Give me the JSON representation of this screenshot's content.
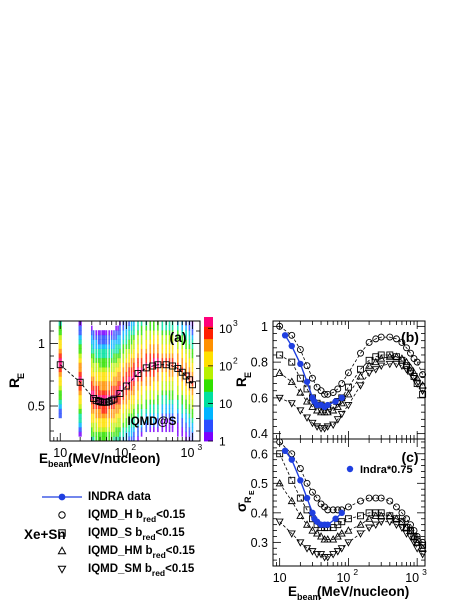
{
  "chart_data": [
    {
      "id": "a",
      "type": "heatmap",
      "panel_label": "(a)",
      "annotation": "IQMD@S",
      "ylabel": "R",
      "ylabel_sub": "E",
      "xlabel": "E",
      "xlabel_sub": "beam",
      "xlabel_rest": "(MeV/nucleon)",
      "x_scale": "log",
      "xlim": [
        7,
        1300
      ],
      "ylim": [
        0.22,
        1.18
      ],
      "x_ticks": [
        {
          "v": 10,
          "t": "10"
        },
        {
          "v": 100,
          "t": "10"
        },
        {
          "v": 1000,
          "t": "10"
        }
      ],
      "x_tick_exp": [
        "",
        "2",
        "3"
      ],
      "y_ticks": [
        {
          "v": 0.5,
          "t": "0.5"
        },
        {
          "v": 1,
          "t": "1"
        }
      ],
      "colorbar": {
        "scale": "log",
        "range": [
          1,
          2000
        ],
        "ticks": [
          {
            "v": 1,
            "t": "1"
          },
          {
            "v": 10,
            "t": "10"
          },
          {
            "v": 100,
            "t": "10",
            "e": "2"
          },
          {
            "v": 1000,
            "t": "10",
            "e": "3"
          }
        ]
      },
      "mean_curve": {
        "x": [
          10,
          20,
          32,
          35,
          38,
          40,
          43,
          46,
          50,
          55,
          60,
          65,
          80,
          100,
          150,
          200,
          250,
          300,
          400,
          500,
          600,
          700,
          800,
          900,
          1000
        ],
        "y": [
          0.83,
          0.69,
          0.56,
          0.545,
          0.54,
          0.535,
          0.53,
          0.53,
          0.53,
          0.535,
          0.545,
          0.555,
          0.6,
          0.66,
          0.76,
          0.805,
          0.82,
          0.83,
          0.83,
          0.82,
          0.8,
          0.77,
          0.74,
          0.71,
          0.67
        ]
      }
    },
    {
      "id": "b",
      "type": "line",
      "panel_label": "(b)",
      "ylabel": "R",
      "ylabel_sub": "E",
      "x_scale": "log",
      "xlim": [
        8,
        1300
      ],
      "ylim": [
        0.37,
        1.03
      ],
      "x_ticks": [
        {
          "v": 10,
          "t": "10"
        },
        {
          "v": 100,
          "t": "10"
        },
        {
          "v": 1000,
          "t": "10"
        }
      ],
      "x_tick_exp": [
        "",
        "2",
        "3"
      ],
      "y_ticks": [
        {
          "v": 0.4,
          "t": "0.4"
        },
        {
          "v": 0.6,
          "t": "0.6"
        },
        {
          "v": 0.8,
          "t": "0.8"
        },
        {
          "v": 1,
          "t": "1"
        }
      ],
      "series": [
        {
          "marker": "filled-circle",
          "x": [
            12,
            15,
            20,
            25,
            30,
            32,
            35,
            40,
            45,
            50,
            65,
            80
          ],
          "y": [
            0.95,
            0.89,
            0.79,
            0.69,
            0.6,
            0.58,
            0.56,
            0.56,
            0.55,
            0.56,
            0.58,
            0.6
          ]
        },
        {
          "marker": "circle",
          "x": [
            10,
            15,
            20,
            25,
            30,
            35,
            40,
            45,
            50,
            60,
            70,
            80,
            100,
            150,
            200,
            250,
            300,
            400,
            500,
            600,
            700,
            800,
            900,
            1000,
            1200
          ],
          "y": [
            1.0,
            0.95,
            0.87,
            0.78,
            0.71,
            0.66,
            0.64,
            0.62,
            0.62,
            0.63,
            0.65,
            0.68,
            0.74,
            0.85,
            0.91,
            0.93,
            0.94,
            0.94,
            0.93,
            0.91,
            0.88,
            0.85,
            0.82,
            0.8,
            0.73
          ]
        },
        {
          "marker": "square",
          "x": [
            10,
            15,
            20,
            25,
            30,
            35,
            40,
            45,
            50,
            60,
            70,
            80,
            100,
            150,
            200,
            250,
            300,
            400,
            500,
            600,
            700,
            800,
            900,
            1000,
            1200
          ],
          "y": [
            0.84,
            0.8,
            0.71,
            0.65,
            0.6,
            0.57,
            0.56,
            0.55,
            0.55,
            0.56,
            0.58,
            0.6,
            0.66,
            0.76,
            0.81,
            0.83,
            0.84,
            0.84,
            0.83,
            0.81,
            0.78,
            0.75,
            0.72,
            0.68,
            0.62
          ]
        },
        {
          "marker": "triangle-up",
          "x": [
            10,
            15,
            20,
            25,
            30,
            35,
            40,
            45,
            50,
            60,
            70,
            80,
            100,
            150,
            200,
            250,
            300,
            400,
            500,
            600,
            700,
            800,
            900,
            1000,
            1200
          ],
          "y": [
            0.74,
            0.69,
            0.63,
            0.58,
            0.55,
            0.53,
            0.52,
            0.52,
            0.52,
            0.53,
            0.55,
            0.57,
            0.62,
            0.72,
            0.78,
            0.8,
            0.82,
            0.83,
            0.83,
            0.82,
            0.8,
            0.77,
            0.74,
            0.71,
            0.67
          ]
        },
        {
          "marker": "triangle-down",
          "x": [
            10,
            15,
            20,
            25,
            30,
            35,
            40,
            45,
            50,
            60,
            70,
            80,
            100,
            150,
            200,
            250,
            300,
            400,
            500,
            600,
            700,
            800,
            900,
            1000,
            1200
          ],
          "y": [
            0.6,
            0.57,
            0.53,
            0.49,
            0.46,
            0.44,
            0.43,
            0.43,
            0.44,
            0.45,
            0.48,
            0.51,
            0.56,
            0.67,
            0.74,
            0.76,
            0.78,
            0.79,
            0.79,
            0.78,
            0.76,
            0.74,
            0.71,
            0.68,
            0.64
          ]
        }
      ]
    },
    {
      "id": "c",
      "type": "line",
      "panel_label": "(c)",
      "ylabel": "σ",
      "ylabel_sub": "R",
      "ylabel_subsub": "E",
      "xlabel": "E",
      "xlabel_sub": "beam",
      "xlabel_rest": "(MeV/nucleon)",
      "inner_legend": "Indra*0.75",
      "x_scale": "log",
      "xlim": [
        8,
        1300
      ],
      "ylim": [
        0.22,
        0.65
      ],
      "x_ticks": [
        {
          "v": 10,
          "t": "10"
        },
        {
          "v": 100,
          "t": "10"
        },
        {
          "v": 1000,
          "t": "10"
        }
      ],
      "x_tick_exp": [
        "",
        "2",
        "3"
      ],
      "y_ticks": [
        {
          "v": 0.3,
          "t": "0.3"
        },
        {
          "v": 0.4,
          "t": "0.4"
        },
        {
          "v": 0.5,
          "t": "0.5"
        },
        {
          "v": 0.6,
          "t": "0.6"
        }
      ],
      "series": [
        {
          "marker": "filled-circle",
          "x": [
            12,
            15,
            20,
            25,
            30,
            32,
            35,
            40,
            45,
            50,
            65,
            80
          ],
          "y": [
            0.61,
            0.58,
            0.51,
            0.45,
            0.4,
            0.38,
            0.37,
            0.36,
            0.36,
            0.36,
            0.38,
            0.4
          ]
        },
        {
          "marker": "circle",
          "x": [
            10,
            15,
            20,
            25,
            30,
            35,
            40,
            45,
            50,
            60,
            70,
            80,
            100,
            150,
            200,
            250,
            300,
            400,
            500,
            600,
            700,
            800,
            900,
            1000,
            1200
          ],
          "y": [
            0.64,
            0.6,
            0.55,
            0.5,
            0.47,
            0.45,
            0.43,
            0.42,
            0.41,
            0.41,
            0.41,
            0.41,
            0.42,
            0.44,
            0.45,
            0.45,
            0.45,
            0.44,
            0.42,
            0.4,
            0.38,
            0.36,
            0.34,
            0.32,
            0.3
          ]
        },
        {
          "marker": "square",
          "x": [
            10,
            15,
            20,
            25,
            30,
            35,
            40,
            45,
            50,
            60,
            70,
            80,
            100,
            150,
            200,
            250,
            300,
            400,
            500,
            600,
            700,
            800,
            900,
            1000,
            1200
          ],
          "y": [
            0.6,
            0.51,
            0.45,
            0.41,
            0.38,
            0.36,
            0.35,
            0.35,
            0.35,
            0.35,
            0.36,
            0.37,
            0.38,
            0.39,
            0.4,
            0.4,
            0.4,
            0.39,
            0.38,
            0.37,
            0.35,
            0.34,
            0.32,
            0.31,
            0.29
          ]
        },
        {
          "marker": "triangle-up",
          "x": [
            10,
            15,
            20,
            25,
            30,
            35,
            40,
            45,
            50,
            60,
            70,
            80,
            100,
            150,
            200,
            250,
            300,
            400,
            500,
            600,
            700,
            800,
            900,
            1000,
            1200
          ],
          "y": [
            0.5,
            0.44,
            0.39,
            0.36,
            0.34,
            0.33,
            0.32,
            0.31,
            0.31,
            0.31,
            0.32,
            0.33,
            0.34,
            0.36,
            0.38,
            0.39,
            0.39,
            0.39,
            0.38,
            0.37,
            0.35,
            0.34,
            0.32,
            0.3,
            0.28
          ]
        },
        {
          "marker": "triangle-down",
          "x": [
            10,
            15,
            20,
            25,
            30,
            35,
            40,
            45,
            50,
            60,
            70,
            80,
            100,
            150,
            200,
            250,
            300,
            400,
            500,
            600,
            700,
            800,
            900,
            1000,
            1200
          ],
          "y": [
            0.37,
            0.33,
            0.3,
            0.28,
            0.27,
            0.26,
            0.26,
            0.25,
            0.25,
            0.26,
            0.27,
            0.28,
            0.3,
            0.33,
            0.35,
            0.36,
            0.37,
            0.37,
            0.36,
            0.35,
            0.33,
            0.32,
            0.3,
            0.28,
            0.26
          ]
        }
      ]
    }
  ],
  "legend": {
    "items": [
      {
        "marker": "filled-circle",
        "label": "INDRA data",
        "sub": "",
        "tail": ""
      },
      {
        "marker": "circle",
        "label": "IQMD_H    b",
        "sub": "red",
        "tail": "<0.15"
      },
      {
        "marker": "square",
        "label": "IQMD_S    b",
        "sub": "red",
        "tail": "<0.15"
      },
      {
        "marker": "triangle-up",
        "label": "IQMD_HM b",
        "sub": "red",
        "tail": "<0.15"
      },
      {
        "marker": "triangle-down",
        "label": "IQMD_SM b",
        "sub": "red",
        "tail": "<0.15"
      }
    ],
    "system_label": "Xe+Sn"
  },
  "colors": {
    "data": "#1f3fe0",
    "model": "#000000",
    "curve": "#000000"
  }
}
